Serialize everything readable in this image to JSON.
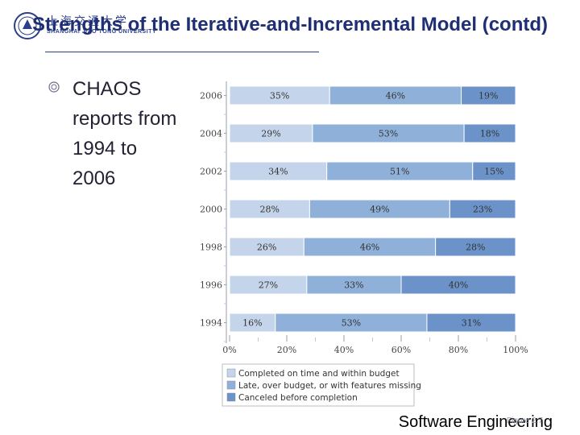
{
  "header": {
    "university_cn": "上海交通大学",
    "university_en": "SHANGHAI JIAO TONG UNIVERSITY",
    "title": "Strengths of the Iterative-and-Incremental Model (contd)"
  },
  "bullets": [
    "CHAOS reports from 1994 to 2006"
  ],
  "footer": {
    "course": "Software Engineering",
    "page": "Figure 2.7"
  },
  "colors": {
    "series1": "#c4d4ea",
    "series2": "#8fb0d9",
    "series3": "#6b93c9",
    "title": "#1e2f73"
  },
  "chart_data": {
    "type": "bar",
    "orientation": "horizontal",
    "stacked": true,
    "categories": [
      "2006",
      "2004",
      "2002",
      "2000",
      "1998",
      "1996",
      "1994"
    ],
    "series": [
      {
        "name": "Completed on time and within budget",
        "values": [
          35,
          29,
          34,
          28,
          26,
          27,
          16
        ]
      },
      {
        "name": "Late, over budget, or with features missing",
        "values": [
          46,
          53,
          51,
          49,
          46,
          33,
          53
        ]
      },
      {
        "name": "Canceled before completion",
        "values": [
          19,
          18,
          15,
          23,
          28,
          40,
          31
        ]
      }
    ],
    "xlim": [
      0,
      100
    ],
    "xticks": [
      "0%",
      "20%",
      "40%",
      "60%",
      "80%",
      "100%"
    ],
    "legend_position": "bottom-left",
    "grid": false
  }
}
